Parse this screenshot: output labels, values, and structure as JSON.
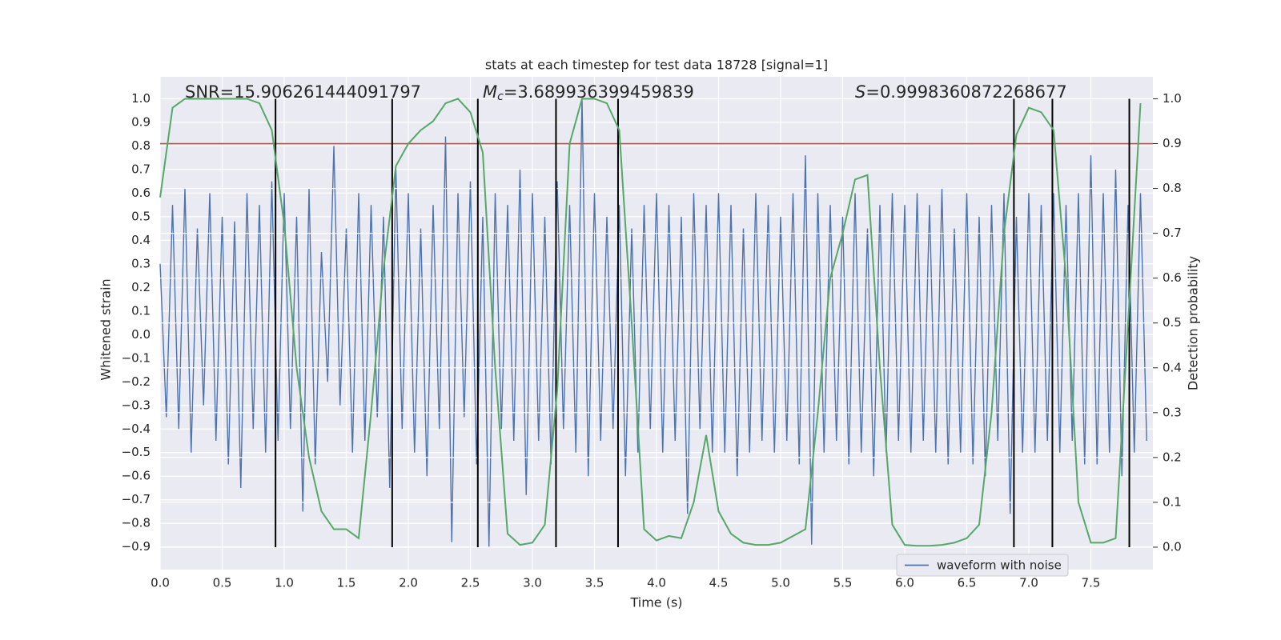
{
  "chart_data": {
    "type": "line",
    "title": "stats at each timestep for test data 18728 [signal=1]",
    "xlabel": "Time (s)",
    "ylabel": "Whitened strain",
    "y2label": "Detection probability",
    "annotations": [
      {
        "symbol": "SNR",
        "text": "=15.906261444091797"
      },
      {
        "symbol": "M",
        "subscript": "c",
        "text": "=3.689936399459839"
      },
      {
        "symbol": "S",
        "text": "=0.9998360872268677"
      }
    ],
    "grid": true,
    "legend": "lower right",
    "xlim": [
      0,
      8
    ],
    "ylim": [
      -0.996,
      1.093
    ],
    "y2lim": [
      -0.05,
      1.049
    ],
    "xticks": [
      {
        "value": 0,
        "label": "0.0"
      },
      {
        "value": 0.5,
        "label": "0.5"
      },
      {
        "value": 1,
        "label": "1.0"
      },
      {
        "value": 1.5,
        "label": "1.5"
      },
      {
        "value": 2,
        "label": "2.0"
      },
      {
        "value": 2.5,
        "label": "2.5"
      },
      {
        "value": 3,
        "label": "3.0"
      },
      {
        "value": 3.5,
        "label": "3.5"
      },
      {
        "value": 4,
        "label": "4.0"
      },
      {
        "value": 4.5,
        "label": "4.5"
      },
      {
        "value": 5,
        "label": "5.0"
      },
      {
        "value": 5.5,
        "label": "5.5"
      },
      {
        "value": 6,
        "label": "6.0"
      },
      {
        "value": 6.5,
        "label": "6.5"
      },
      {
        "value": 7,
        "label": "7.0"
      },
      {
        "value": 7.5,
        "label": "7.5"
      }
    ],
    "yticks": [
      {
        "value": 1,
        "label": "1.0"
      },
      0.9,
      0.8,
      0.7,
      0.6,
      0.5,
      0.4,
      0.3,
      0.2,
      0.1,
      {
        "value": 0,
        "label": "0.0"
      },
      {
        "value": -0.1,
        "label": "−0.1"
      },
      {
        "value": -0.2,
        "label": "−0.2"
      },
      {
        "value": -0.3,
        "label": "−0.3"
      },
      {
        "value": -0.4,
        "label": "−0.4"
      },
      {
        "value": -0.5,
        "label": "−0.5"
      },
      {
        "value": -0.6,
        "label": "−0.6"
      },
      {
        "value": -0.7,
        "label": "−0.7"
      },
      {
        "value": -0.8,
        "label": "−0.8"
      },
      {
        "value": -0.9,
        "label": "−0.9"
      }
    ],
    "y2ticks": [
      {
        "value": 1,
        "label": "1.0"
      },
      0.9,
      0.8,
      0.7,
      0.6,
      0.5,
      0.4,
      0.3,
      0.2,
      0.1,
      {
        "value": 0,
        "label": "0.0"
      }
    ],
    "waveform": {
      "name": "waveform with noise",
      "color": "#4c72b0",
      "x": [
        0,
        0.05,
        0.1,
        0.15,
        0.2,
        0.25,
        0.3,
        0.35,
        0.4,
        0.45,
        0.5,
        0.55,
        0.6,
        0.65,
        0.7,
        0.75,
        0.8,
        0.85,
        0.9,
        0.95,
        1,
        1.05,
        1.1,
        1.15,
        1.2,
        1.25,
        1.3,
        1.35,
        1.4,
        1.45,
        1.5,
        1.55,
        1.6,
        1.65,
        1.7,
        1.75,
        1.8,
        1.85,
        1.9,
        1.95,
        2,
        2.05,
        2.1,
        2.15,
        2.2,
        2.25,
        2.3,
        2.35,
        2.4,
        2.45,
        2.5,
        2.55,
        2.6,
        2.65,
        2.7,
        2.75,
        2.8,
        2.85,
        2.9,
        2.95,
        3,
        3.05,
        3.1,
        3.15,
        3.2,
        3.25,
        3.3,
        3.35,
        3.4,
        3.45,
        3.5,
        3.55,
        3.6,
        3.65,
        3.7,
        3.75,
        3.8,
        3.85,
        3.9,
        3.95,
        4,
        4.05,
        4.1,
        4.15,
        4.2,
        4.25,
        4.3,
        4.35,
        4.4,
        4.45,
        4.5,
        4.55,
        4.6,
        4.65,
        4.7,
        4.75,
        4.8,
        4.85,
        4.9,
        4.95,
        5,
        5.05,
        5.1,
        5.15,
        5.2,
        5.25,
        5.3,
        5.35,
        5.4,
        5.45,
        5.5,
        5.55,
        5.6,
        5.65,
        5.7,
        5.75,
        5.8,
        5.85,
        5.9,
        5.95,
        6,
        6.05,
        6.1,
        6.15,
        6.2,
        6.25,
        6.3,
        6.35,
        6.4,
        6.45,
        6.5,
        6.55,
        6.6,
        6.65,
        6.7,
        6.75,
        6.8,
        6.85,
        6.9,
        6.95,
        7,
        7.05,
        7.1,
        7.15,
        7.2,
        7.25,
        7.3,
        7.35,
        7.4,
        7.45,
        7.5,
        7.55,
        7.6,
        7.65,
        7.7,
        7.75,
        7.8,
        7.85,
        7.9,
        7.95
      ],
      "values": [
        0.3,
        -0.35,
        0.55,
        -0.4,
        0.62,
        -0.5,
        0.45,
        -0.3,
        0.6,
        -0.45,
        0.5,
        -0.55,
        0.48,
        -0.65,
        0.6,
        -0.4,
        0.55,
        -0.5,
        0.65,
        -0.45,
        0.6,
        -0.4,
        0.5,
        -0.75,
        0.62,
        -0.55,
        0.35,
        -0.2,
        0.8,
        -0.3,
        0.45,
        -0.5,
        0.6,
        -0.45,
        0.55,
        -0.35,
        0.5,
        -0.65,
        0.7,
        -0.4,
        0.6,
        -0.5,
        0.45,
        -0.6,
        0.55,
        -0.4,
        0.84,
        -0.88,
        0.6,
        -0.35,
        0.65,
        -0.55,
        0.5,
        -0.9,
        0.6,
        -0.4,
        0.55,
        -0.45,
        0.7,
        -0.68,
        0.6,
        -0.45,
        0.5,
        -0.55,
        0.65,
        -0.4,
        0.55,
        -0.5,
        1.0,
        -0.6,
        0.6,
        -0.45,
        0.5,
        -0.4,
        0.55,
        -0.6,
        0.45,
        -0.5,
        0.55,
        -0.4,
        0.6,
        -0.5,
        0.55,
        -0.45,
        0.5,
        -0.76,
        0.6,
        -0.4,
        0.55,
        -0.5,
        0.6,
        -0.5,
        0.55,
        -0.6,
        0.45,
        -0.5,
        0.6,
        -0.45,
        0.55,
        -0.5,
        0.5,
        -0.45,
        0.6,
        -0.55,
        0.76,
        -0.89,
        0.6,
        -0.5,
        0.55,
        -0.45,
        0.5,
        -0.55,
        0.6,
        -0.5,
        0.45,
        -0.6,
        0.55,
        -0.5,
        0.6,
        -0.45,
        0.55,
        -0.5,
        0.6,
        -0.45,
        0.55,
        -0.5,
        0.62,
        -0.55,
        0.45,
        -0.5,
        0.6,
        -0.55,
        0.5,
        -0.6,
        0.55,
        -0.45,
        0.6,
        -0.76,
        0.5,
        -0.5,
        0.6,
        -0.5,
        0.55,
        -0.45,
        0.6,
        -0.5,
        0.55,
        -0.45,
        0.6,
        -0.55,
        0.76,
        -0.55,
        0.6,
        -0.5,
        0.7,
        -0.6,
        0.55,
        -0.5,
        0.6,
        -0.45
      ]
    },
    "probability": {
      "color": "#55a868",
      "axis": "y2",
      "x": [
        0,
        0.1,
        0.2,
        0.3,
        0.4,
        0.5,
        0.6,
        0.7,
        0.8,
        0.9,
        1,
        1.1,
        1.2,
        1.3,
        1.4,
        1.5,
        1.6,
        1.7,
        1.8,
        1.9,
        2,
        2.1,
        2.2,
        2.3,
        2.4,
        2.5,
        2.6,
        2.7,
        2.8,
        2.9,
        3,
        3.1,
        3.2,
        3.3,
        3.4,
        3.5,
        3.6,
        3.7,
        3.8,
        3.9,
        4,
        4.1,
        4.2,
        4.3,
        4.4,
        4.5,
        4.6,
        4.7,
        4.8,
        4.9,
        5,
        5.1,
        5.2,
        5.3,
        5.4,
        5.5,
        5.6,
        5.7,
        5.8,
        5.9,
        6,
        6.1,
        6.2,
        6.3,
        6.4,
        6.5,
        6.6,
        6.7,
        6.8,
        6.9,
        7,
        7.1,
        7.2,
        7.3,
        7.4,
        7.5,
        7.6,
        7.7,
        7.8,
        7.9
      ],
      "values": [
        0.78,
        0.98,
        1,
        1,
        1,
        1,
        1,
        1,
        0.99,
        0.93,
        0.72,
        0.4,
        0.2,
        0.08,
        0.04,
        0.04,
        0.02,
        0.3,
        0.62,
        0.85,
        0.9,
        0.93,
        0.95,
        0.99,
        1,
        0.97,
        0.88,
        0.4,
        0.03,
        0.005,
        0.01,
        0.05,
        0.35,
        0.9,
        1,
        1,
        0.99,
        0.93,
        0.5,
        0.04,
        0.015,
        0.025,
        0.02,
        0.1,
        0.25,
        0.08,
        0.03,
        0.01,
        0.005,
        0.005,
        0.01,
        0.025,
        0.04,
        0.3,
        0.6,
        0.7,
        0.82,
        0.83,
        0.4,
        0.05,
        0.005,
        0.003,
        0.003,
        0.005,
        0.01,
        0.02,
        0.05,
        0.3,
        0.7,
        0.92,
        0.98,
        0.97,
        0.93,
        0.6,
        0.1,
        0.01,
        0.01,
        0.02,
        0.5,
        0.99
      ]
    },
    "threshold": {
      "value": 0.9,
      "axis": "y2",
      "color": "#c44e52"
    },
    "vlines": {
      "x": [
        0.93,
        1.87,
        2.56,
        3.19,
        3.69,
        6.88,
        7.19,
        7.81
      ],
      "ymin": 0,
      "ymax": 1,
      "axis": "y2",
      "color": "#000000"
    }
  }
}
